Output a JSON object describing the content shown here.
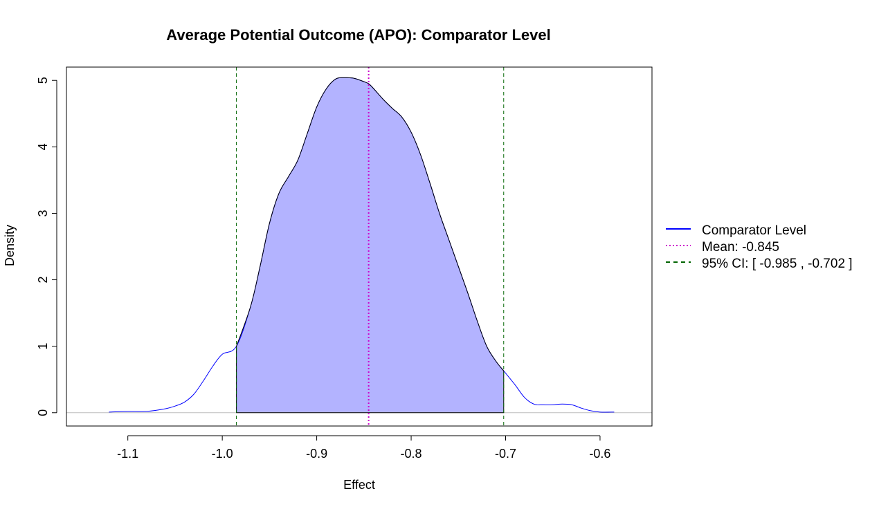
{
  "chart_data": {
    "type": "area",
    "title": "Average Potential Outcome (APO): Comparator Level",
    "xlabel": "Effect",
    "ylabel": "Density",
    "xlim": [
      -1.165,
      -0.545
    ],
    "ylim": [
      -0.2,
      5.2
    ],
    "x_ticks": [
      -1.1,
      -1.0,
      -0.9,
      -0.8,
      -0.7,
      -0.6
    ],
    "x_tick_labels": [
      "-1.1",
      "-1.0",
      "-0.9",
      "-0.8",
      "-0.7",
      "-0.6"
    ],
    "y_ticks": [
      0,
      1,
      2,
      3,
      4,
      5
    ],
    "y_tick_labels": [
      "0",
      "1",
      "2",
      "3",
      "4",
      "5"
    ],
    "grid": false,
    "legend_position": "right",
    "series": [
      {
        "name": "Comparator Level",
        "color": "#0000ff",
        "x": [
          -1.12,
          -1.1,
          -1.08,
          -1.06,
          -1.05,
          -1.04,
          -1.03,
          -1.02,
          -1.01,
          -1.0,
          -0.985,
          -0.97,
          -0.96,
          -0.95,
          -0.94,
          -0.93,
          -0.92,
          -0.91,
          -0.9,
          -0.89,
          -0.88,
          -0.87,
          -0.86,
          -0.85,
          -0.845,
          -0.84,
          -0.83,
          -0.82,
          -0.81,
          -0.8,
          -0.79,
          -0.78,
          -0.77,
          -0.76,
          -0.75,
          -0.74,
          -0.73,
          -0.72,
          -0.71,
          -0.702,
          -0.69,
          -0.68,
          -0.67,
          -0.66,
          -0.65,
          -0.64,
          -0.63,
          -0.62,
          -0.61,
          -0.6,
          -0.585
        ],
        "y": [
          0.01,
          0.02,
          0.02,
          0.06,
          0.1,
          0.16,
          0.28,
          0.48,
          0.7,
          0.88,
          1.0,
          1.6,
          2.2,
          2.85,
          3.3,
          3.55,
          3.8,
          4.2,
          4.6,
          4.87,
          5.02,
          5.04,
          5.03,
          4.98,
          4.95,
          4.88,
          4.72,
          4.58,
          4.45,
          4.22,
          3.88,
          3.45,
          3.0,
          2.6,
          2.2,
          1.8,
          1.38,
          1.0,
          0.77,
          0.63,
          0.42,
          0.23,
          0.13,
          0.12,
          0.12,
          0.13,
          0.12,
          0.07,
          0.03,
          0.01,
          0.01
        ]
      }
    ],
    "mean": {
      "label": "Mean: -0.845",
      "value": -0.845,
      "color": "#cc00cc"
    },
    "ci": {
      "label": "95% CI: [ -0.985 , -0.702 ]",
      "lower": -0.985,
      "upper": -0.702,
      "color": "#006400"
    },
    "fill_color": "#b3b3ff",
    "baseline_color": "#bebebe"
  }
}
